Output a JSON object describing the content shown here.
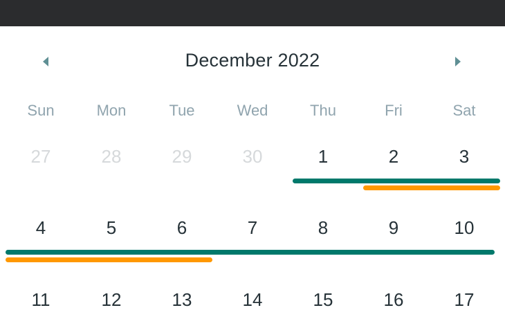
{
  "calendar": {
    "month_label": "December 2022",
    "weekdays": [
      "Sun",
      "Mon",
      "Tue",
      "Wed",
      "Thu",
      "Fri",
      "Sat"
    ],
    "weeks": [
      [
        "27",
        "28",
        "29",
        "30",
        "1",
        "2",
        "3"
      ],
      [
        "4",
        "5",
        "6",
        "7",
        "8",
        "9",
        "10"
      ],
      [
        "11",
        "12",
        "13",
        "14",
        "15",
        "16",
        "17"
      ]
    ],
    "outside_month_days": [
      "27",
      "28",
      "29",
      "30"
    ]
  },
  "colors": {
    "header_bar": "#2b2c2e",
    "event_teal": "#00796b",
    "event_orange": "#ff9800",
    "nav_arrow": "#5f8f94",
    "weekday_text": "#90a4ae",
    "day_text": "#263238",
    "muted_day_text": "#d6d9db"
  },
  "icons": {
    "prev": "triangle-left-icon",
    "next": "triangle-right-icon"
  }
}
